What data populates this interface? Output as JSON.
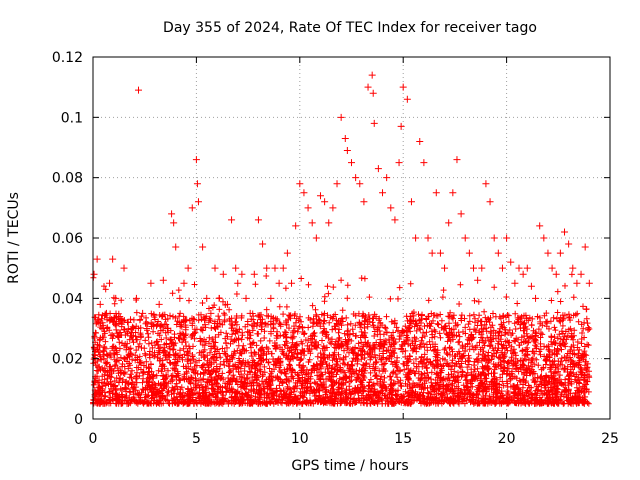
{
  "chart_data": {
    "type": "scatter",
    "title": "Day 355 of 2024, Rate Of TEC Index for receiver tago",
    "xlabel": "GPS time / hours",
    "ylabel": "ROTI / TECUs",
    "xlim": [
      0,
      25
    ],
    "ylim": [
      0,
      0.12
    ],
    "xticks": [
      0,
      5,
      10,
      15,
      20,
      25
    ],
    "xtick_labels": [
      "0",
      "5",
      "10",
      "15",
      "20",
      "25"
    ],
    "yticks": [
      0,
      0.02,
      0.04,
      0.06,
      0.08,
      0.1,
      0.12
    ],
    "ytick_labels": [
      "0",
      "0.02",
      "0.04",
      "0.06",
      "0.08",
      "0.1",
      "0.12"
    ],
    "grid": true,
    "marker": "plus",
    "color": "#ff0000",
    "series": [
      {
        "name": "ROTI",
        "x": [
          0.05,
          0.2,
          0.35,
          0.5,
          0.65,
          0.8,
          0.95,
          1.1,
          1.3,
          1.5,
          1.7,
          1.9,
          2.1,
          2.2,
          2.4,
          2.6,
          2.8,
          3.0,
          3.2,
          3.4,
          3.6,
          3.8,
          3.9,
          4.0,
          4.2,
          4.4,
          4.6,
          4.8,
          5.0,
          5.05,
          5.1,
          5.3,
          5.5,
          5.7,
          5.9,
          6.1,
          6.3,
          6.5,
          6.7,
          6.9,
          7.0,
          7.2,
          7.4,
          7.6,
          7.8,
          8.0,
          8.2,
          8.4,
          8.6,
          8.8,
          9.0,
          9.2,
          9.4,
          9.6,
          9.8,
          10.0,
          10.2,
          10.4,
          10.6,
          10.8,
          11.0,
          11.2,
          11.4,
          11.6,
          11.8,
          12.0,
          12.2,
          12.3,
          12.5,
          12.7,
          12.9,
          13.1,
          13.3,
          13.5,
          13.55,
          13.6,
          13.8,
          14.0,
          14.2,
          14.4,
          14.6,
          14.8,
          14.9,
          15.0,
          15.2,
          15.4,
          15.6,
          15.8,
          16.0,
          16.2,
          16.4,
          16.6,
          16.8,
          17.0,
          17.2,
          17.4,
          17.6,
          17.8,
          18.0,
          18.2,
          18.4,
          18.6,
          18.8,
          19.0,
          19.2,
          19.4,
          19.6,
          19.8,
          20.0,
          20.2,
          20.4,
          20.6,
          20.8,
          21.0,
          21.2,
          21.4,
          21.6,
          21.8,
          22.0,
          22.2,
          22.4,
          22.6,
          22.8,
          23.0,
          23.2,
          23.4,
          23.6,
          23.8,
          24.0
        ],
        "y": [
          0.048,
          0.053,
          0.038,
          0.03,
          0.035,
          0.045,
          0.053,
          0.04,
          0.033,
          0.05,
          0.032,
          0.03,
          0.04,
          0.109,
          0.035,
          0.03,
          0.045,
          0.033,
          0.038,
          0.046,
          0.03,
          0.068,
          0.065,
          0.057,
          0.04,
          0.045,
          0.05,
          0.07,
          0.086,
          0.078,
          0.072,
          0.057,
          0.04,
          0.035,
          0.05,
          0.04,
          0.048,
          0.038,
          0.066,
          0.05,
          0.045,
          0.048,
          0.04,
          0.035,
          0.048,
          0.066,
          0.058,
          0.05,
          0.04,
          0.05,
          0.045,
          0.05,
          0.055,
          0.045,
          0.064,
          0.078,
          0.075,
          0.07,
          0.065,
          0.06,
          0.074,
          0.072,
          0.065,
          0.07,
          0.078,
          0.1,
          0.093,
          0.089,
          0.085,
          0.08,
          0.078,
          0.072,
          0.11,
          0.114,
          0.108,
          0.098,
          0.083,
          0.075,
          0.08,
          0.07,
          0.066,
          0.085,
          0.097,
          0.11,
          0.106,
          0.072,
          0.06,
          0.092,
          0.085,
          0.06,
          0.055,
          0.075,
          0.055,
          0.05,
          0.065,
          0.075,
          0.086,
          0.068,
          0.06,
          0.055,
          0.05,
          0.046,
          0.05,
          0.078,
          0.072,
          0.06,
          0.055,
          0.05,
          0.06,
          0.052,
          0.045,
          0.05,
          0.048,
          0.05,
          0.044,
          0.04,
          0.064,
          0.06,
          0.055,
          0.05,
          0.048,
          0.055,
          0.062,
          0.058,
          0.05,
          0.045,
          0.048,
          0.057,
          0.045
        ]
      }
    ],
    "bulk_band": {
      "description_values": "dense cluster of points across full day",
      "x_range": [
        0,
        24
      ],
      "y_low": 0.005,
      "y_typical_high": 0.035
    }
  }
}
